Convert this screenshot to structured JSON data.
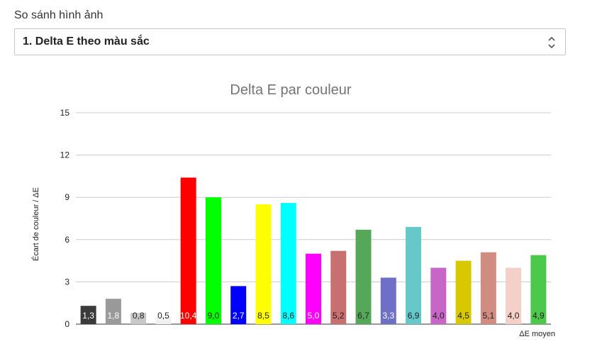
{
  "comparison": {
    "label": "So sánh hình ảnh",
    "selected": "1. Delta E theo màu sắc"
  },
  "chart_data": {
    "type": "bar",
    "title": "Delta E par couleur",
    "xlabel": "ΔE moyen",
    "ylabel": "Écart de couleur / ΔE",
    "ylim": [
      0,
      15
    ],
    "yticks": [
      "0",
      "3",
      "6",
      "9",
      "12",
      "15"
    ],
    "grid": true,
    "values": [
      1.3,
      1.8,
      0.8,
      0.5,
      10.4,
      9.0,
      2.7,
      8.5,
      8.6,
      5.0,
      5.2,
      6.7,
      3.3,
      6.9,
      4.0,
      4.5,
      5.1,
      4.0,
      4.9
    ],
    "labels": [
      "1,3",
      "1,8",
      "0,8",
      "0,5",
      "10,4",
      "9,0",
      "2,7",
      "8,5",
      "8,6",
      "5,0",
      "5,2",
      "6,7",
      "3,3",
      "6,9",
      "4,0",
      "4,5",
      "5,1",
      "4,0",
      "4,9"
    ],
    "colors": [
      "#3a3a3a",
      "#9a9a9a",
      "#c8c8c8",
      "#f0f0f0",
      "#ff0000",
      "#00ff00",
      "#0000ff",
      "#ffff00",
      "#00ffff",
      "#ff00ff",
      "#c87070",
      "#55a858",
      "#6e70c8",
      "#66c8c8",
      "#c866c8",
      "#d8c800",
      "#d08c80",
      "#f4d0c8",
      "#4cc84c"
    ],
    "label_colors": [
      "#ffffff",
      "#ffffff",
      "#222222",
      "#222222",
      "#ffffff",
      "#222222",
      "#ffffff",
      "#222222",
      "#222222",
      "#ffffff",
      "#222222",
      "#222222",
      "#ffffff",
      "#222222",
      "#222222",
      "#222222",
      "#222222",
      "#222222",
      "#222222"
    ]
  }
}
